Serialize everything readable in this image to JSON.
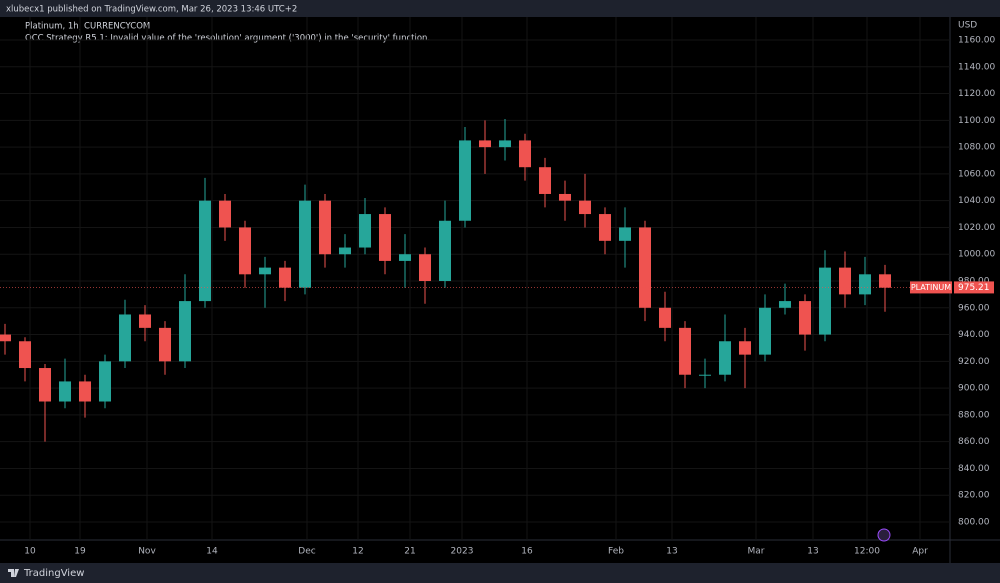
{
  "header": {
    "published": "xlubecx1 published on TradingView.com, Mar 26, 2023 13:46 UTC+2"
  },
  "footer": {
    "brand": "TradingView"
  },
  "chart_data": {
    "type": "candlestick",
    "title": "Platinum, 1h, CURRENCYCOM",
    "subtitle": "OCC Strategy R5.1: Invalid value of the 'resolution' argument ('3000') in the 'security' function.",
    "currency": "USD",
    "symbol_tag": "PLATINUM",
    "last_price": 975.21,
    "up_color": "#26a69a",
    "down_color": "#ef5350",
    "grid": true,
    "open": [
      940,
      935,
      915,
      890,
      905,
      890,
      920,
      955,
      945,
      920,
      965,
      1040,
      1020,
      985,
      990,
      975,
      1040,
      1000,
      1005,
      1030,
      995,
      1000,
      980,
      1025,
      1085,
      1080,
      1085,
      1065,
      1045,
      1040,
      1030,
      1010,
      1020,
      960,
      945,
      910,
      910,
      935,
      925,
      960,
      965,
      940,
      990,
      970,
      985
    ],
    "high": [
      948,
      938,
      918,
      922,
      910,
      925,
      966,
      962,
      950,
      985,
      1057,
      1045,
      1025,
      998,
      995,
      1052,
      1045,
      1015,
      1042,
      1035,
      1015,
      1005,
      1040,
      1095,
      1100,
      1101,
      1090,
      1072,
      1055,
      1060,
      1035,
      1035,
      1025,
      972,
      950,
      922,
      955,
      945,
      970,
      978,
      970,
      1003,
      1002,
      998,
      992
    ],
    "low": [
      925,
      905,
      860,
      885,
      878,
      885,
      915,
      935,
      910,
      915,
      960,
      1010,
      975,
      960,
      965,
      970,
      990,
      990,
      1000,
      985,
      975,
      963,
      975,
      1020,
      1060,
      1070,
      1055,
      1035,
      1025,
      1020,
      1000,
      990,
      950,
      935,
      900,
      900,
      905,
      900,
      920,
      955,
      928,
      935,
      960,
      962,
      957
    ],
    "close": [
      935,
      915,
      890,
      905,
      890,
      920,
      955,
      945,
      920,
      965,
      1040,
      1020,
      985,
      990,
      975,
      1040,
      1000,
      1005,
      1030,
      995,
      1000,
      980,
      1025,
      1085,
      1080,
      1085,
      1065,
      1045,
      1040,
      1030,
      1010,
      1020,
      960,
      945,
      910,
      910,
      935,
      925,
      960,
      965,
      940,
      990,
      970,
      985,
      975
    ],
    "xlim": [
      -0.25,
      47.25
    ],
    "xticks": [
      {
        "value": 1.25,
        "label": "10"
      },
      {
        "value": 3.75,
        "label": "19"
      },
      {
        "value": 7.1,
        "label": "Nov"
      },
      {
        "value": 10.35,
        "label": "14"
      },
      {
        "value": 15.1,
        "label": "Dec"
      },
      {
        "value": 17.65,
        "label": "12"
      },
      {
        "value": 20.25,
        "label": "21"
      },
      {
        "value": 22.85,
        "label": "2023"
      },
      {
        "value": 26.1,
        "label": "16"
      },
      {
        "value": 30.55,
        "label": "Feb"
      },
      {
        "value": 33.35,
        "label": "13"
      },
      {
        "value": 37.55,
        "label": "Mar"
      },
      {
        "value": 40.4,
        "label": "13"
      },
      {
        "value": 43.1,
        "label": "12:00"
      },
      {
        "value": 45.75,
        "label": "Apr"
      }
    ],
    "ylim": [
      786.56,
      1177.18
    ],
    "yticks": [
      {
        "value": 800,
        "label": "800.00"
      },
      {
        "value": 820,
        "label": "820.00"
      },
      {
        "value": 840,
        "label": "840.00"
      },
      {
        "value": 860,
        "label": "860.00"
      },
      {
        "value": 880,
        "label": "880.00"
      },
      {
        "value": 900,
        "label": "900.00"
      },
      {
        "value": 920,
        "label": "920.00"
      },
      {
        "value": 940,
        "label": "940.00"
      },
      {
        "value": 960,
        "label": "960.00"
      },
      {
        "value": 980,
        "label": "980.00"
      },
      {
        "value": 1000,
        "label": "1000.00"
      },
      {
        "value": 1020,
        "label": "1020.00"
      },
      {
        "value": 1040,
        "label": "1040.00"
      },
      {
        "value": 1060,
        "label": "1060.00"
      },
      {
        "value": 1080,
        "label": "1080.00"
      },
      {
        "value": 1100,
        "label": "1100.00"
      },
      {
        "value": 1120,
        "label": "1120.00"
      },
      {
        "value": 1140,
        "label": "1140.00"
      },
      {
        "value": 1160,
        "label": "1160.00"
      }
    ]
  }
}
